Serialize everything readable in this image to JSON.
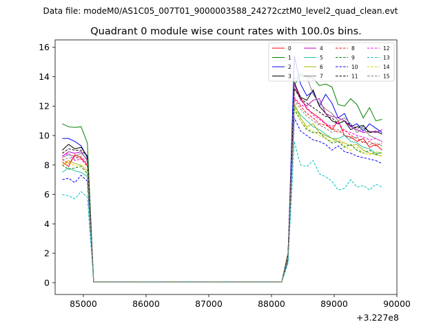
{
  "figure": {
    "suptitle": "Data file: modeM0/AS1C05_007T01_9000003588_24272cztM0_level2_quad_clean.evt",
    "title": "Quadrant 0 module wise count rates with 100.0s bins.",
    "x_offset_label": "+3.227e8"
  },
  "chart_data": {
    "type": "line",
    "title": "Quadrant 0 module wise count rates with 100.0s bins.",
    "xlabel": "",
    "ylabel": "",
    "x_offset": 322700000,
    "xlim": [
      84550,
      90000
    ],
    "ylim": [
      -0.8,
      16.5
    ],
    "xticks": [
      85000,
      86000,
      87000,
      88000,
      89000,
      90000
    ],
    "yticks": [
      0,
      2,
      4,
      6,
      8,
      10,
      12,
      14,
      16
    ],
    "grid": false,
    "legend": {
      "placement": "top-right",
      "ncol": 4
    },
    "x": [
      84664,
      84764,
      84864,
      84964,
      85064,
      85164,
      88164,
      88264,
      88364,
      88464,
      88564,
      88664,
      88764,
      88864,
      88964,
      89064,
      89164,
      89264,
      89364,
      89464,
      89564,
      89664,
      89764
    ],
    "series": [
      {
        "name": "0",
        "color": "#ff0000",
        "dash": "solid",
        "values": [
          8.2,
          7.9,
          8.7,
          8.5,
          8.0,
          0.05,
          0.05,
          2.0,
          13.2,
          12.6,
          11.8,
          11.5,
          11.2,
          10.8,
          10.4,
          11.0,
          10.0,
          9.9,
          9.6,
          9.8,
          9.2,
          9.4,
          9.0
        ]
      },
      {
        "name": "1",
        "color": "#008000",
        "dash": "solid",
        "values": [
          10.8,
          10.6,
          10.55,
          10.6,
          9.5,
          0.05,
          0.05,
          2.0,
          13.4,
          14.2,
          14.0,
          13.9,
          13.4,
          13.5,
          13.3,
          12.1,
          12.0,
          12.5,
          12.1,
          11.2,
          11.9,
          11.0,
          11.1
        ]
      },
      {
        "name": "2",
        "color": "#0000ff",
        "dash": "solid",
        "values": [
          9.8,
          9.8,
          9.6,
          9.3,
          8.5,
          0.05,
          0.05,
          1.8,
          15.4,
          13.5,
          12.7,
          13.0,
          12.0,
          12.8,
          12.2,
          11.2,
          11.5,
          10.6,
          10.8,
          10.3,
          10.8,
          10.5,
          10.2
        ]
      },
      {
        "name": "3",
        "color": "#000000",
        "dash": "solid",
        "values": [
          9.0,
          9.4,
          9.1,
          9.2,
          8.6,
          0.05,
          0.05,
          1.9,
          13.6,
          12.6,
          12.4,
          13.1,
          12.0,
          11.5,
          11.0,
          10.8,
          11.0,
          10.4,
          10.6,
          10.7,
          10.2,
          10.3,
          10.1
        ]
      },
      {
        "name": "4",
        "color": "#c000c0",
        "dash": "solid",
        "values": [
          8.6,
          8.9,
          8.8,
          8.9,
          8.3,
          0.05,
          0.05,
          1.8,
          13.5,
          12.4,
          12.0,
          12.4,
          12.5,
          11.5,
          11.3,
          11.2,
          11.0,
          10.6,
          10.4,
          10.2,
          10.3,
          10.2,
          10.4
        ]
      },
      {
        "name": "5",
        "color": "#20c0a0",
        "dash": "solid",
        "values": [
          7.5,
          7.8,
          7.6,
          7.5,
          7.2,
          0.05,
          0.05,
          1.7,
          12.0,
          11.4,
          11.0,
          10.6,
          10.4,
          10.1,
          9.8,
          9.8,
          10.0,
          9.6,
          9.5,
          9.2,
          9.1,
          8.8,
          8.8
        ]
      },
      {
        "name": "6",
        "color": "#b0b000",
        "dash": "solid",
        "values": [
          8.0,
          8.3,
          8.1,
          8.0,
          7.6,
          0.05,
          0.05,
          1.6,
          12.2,
          11.2,
          10.6,
          10.8,
          10.2,
          10.0,
          9.8,
          9.6,
          9.5,
          9.3,
          9.4,
          9.0,
          8.8,
          8.7,
          8.6
        ]
      },
      {
        "name": "7",
        "color": "#808080",
        "dash": "solid",
        "values": [
          8.5,
          8.7,
          8.6,
          8.8,
          8.4,
          0.05,
          0.05,
          1.9,
          13.9,
          14.0,
          14.0,
          12.8,
          12.2,
          11.8,
          11.5,
          11.0,
          11.2,
          10.8,
          10.2,
          10.5,
          10.0,
          9.8,
          9.6
        ]
      },
      {
        "name": "8",
        "color": "#ff0000",
        "dash": "dashed",
        "values": [
          8.4,
          8.1,
          8.6,
          8.4,
          7.9,
          0.05,
          0.05,
          1.8,
          12.5,
          12.0,
          11.5,
          11.2,
          10.8,
          10.7,
          10.5,
          10.2,
          10.4,
          10.0,
          9.8,
          9.5,
          9.6,
          9.3,
          9.5
        ]
      },
      {
        "name": "9",
        "color": "#008000",
        "dash": "dashed",
        "values": [
          8.0,
          7.7,
          7.8,
          7.9,
          7.4,
          0.05,
          0.05,
          1.6,
          11.8,
          11.0,
          10.4,
          10.2,
          10.2,
          9.8,
          9.5,
          9.6,
          9.2,
          9.4,
          9.0,
          8.8,
          9.0,
          8.7,
          8.9
        ]
      },
      {
        "name": "10",
        "color": "#0000ff",
        "dash": "dashed",
        "values": [
          7.0,
          7.1,
          6.8,
          7.3,
          6.9,
          0.05,
          0.05,
          1.5,
          11.2,
          10.3,
          10.0,
          9.7,
          9.6,
          9.4,
          9.0,
          9.3,
          8.9,
          8.8,
          8.6,
          8.5,
          8.4,
          8.3,
          8.1
        ]
      },
      {
        "name": "11",
        "color": "#000000",
        "dash": "dashed",
        "values": [
          8.8,
          9.1,
          9.0,
          9.0,
          8.6,
          0.05,
          0.05,
          1.9,
          13.2,
          12.5,
          12.2,
          11.9,
          11.6,
          11.3,
          11.2,
          10.8,
          11.0,
          10.7,
          10.5,
          10.6,
          10.2,
          10.3,
          10.1
        ]
      },
      {
        "name": "12",
        "color": "#ff00ff",
        "dash": "dashed",
        "values": [
          8.6,
          8.8,
          8.3,
          8.4,
          8.1,
          0.05,
          0.05,
          1.8,
          12.6,
          12.1,
          11.9,
          11.4,
          11.1,
          10.8,
          10.6,
          10.9,
          10.3,
          10.2,
          10.0,
          9.9,
          9.7,
          9.8,
          9.6
        ]
      },
      {
        "name": "13",
        "color": "#00c0c0",
        "dash": "dashed",
        "values": [
          6.0,
          5.9,
          5.7,
          6.2,
          5.8,
          0.05,
          0.05,
          1.3,
          9.6,
          8.0,
          7.9,
          8.3,
          7.4,
          7.2,
          6.9,
          6.3,
          6.4,
          7.0,
          6.5,
          6.6,
          6.3,
          6.7,
          6.5
        ]
      },
      {
        "name": "14",
        "color": "#d0d000",
        "dash": "dashed",
        "values": [
          8.0,
          8.2,
          7.9,
          8.0,
          7.6,
          0.05,
          0.05,
          1.7,
          12.0,
          11.0,
          10.5,
          10.3,
          10.0,
          9.8,
          9.6,
          9.8,
          9.3,
          9.0,
          9.2,
          8.8,
          8.7,
          8.9,
          8.8
        ]
      },
      {
        "name": "15",
        "color": "#808080",
        "dash": "dashed",
        "values": [
          8.3,
          8.5,
          8.4,
          8.6,
          8.2,
          0.05,
          0.05,
          1.8,
          12.4,
          11.8,
          11.3,
          11.0,
          10.7,
          10.5,
          10.2,
          10.4,
          10.0,
          9.8,
          9.9,
          9.6,
          9.4,
          9.5,
          9.3
        ]
      }
    ]
  }
}
